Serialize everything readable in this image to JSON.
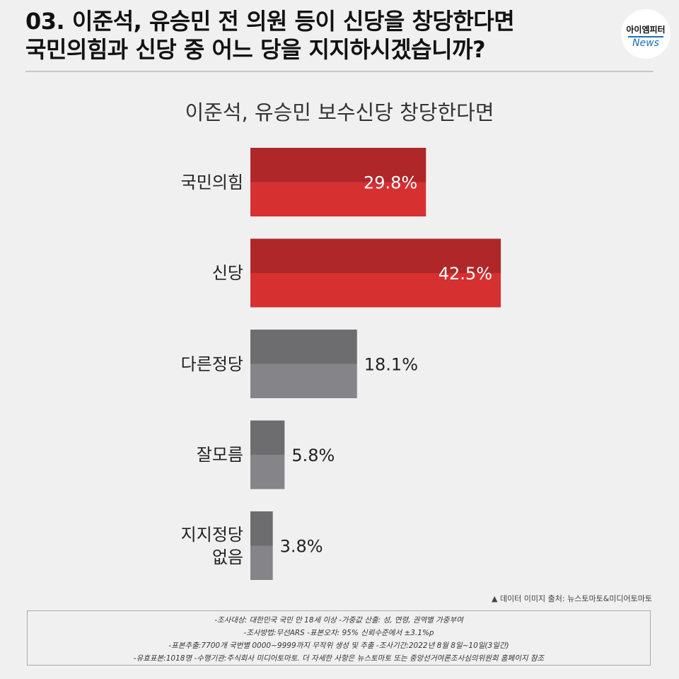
{
  "header": {
    "title_lines": [
      "03. 이준석, 유승민 전 의원 등이 신당을 창당한다면",
      "국민의힘과 신당 중 어느 당을 지지하시겠습니까?"
    ]
  },
  "logo": {
    "name": "아이엠피터",
    "subname": "News"
  },
  "chart_data": {
    "type": "hbar",
    "title": "이준석, 유승민 보수신당 창당한다면",
    "categories": [
      "국민의힘",
      "신당",
      "다른정당",
      "잘모름",
      "지지정당\n없음"
    ],
    "values": [
      29.8,
      42.5,
      18.1,
      5.8,
      3.8
    ],
    "value_labels": [
      "29.8%",
      "42.5%",
      "18.1%",
      "5.8%",
      "3.8%"
    ],
    "colors": [
      "#d63031",
      "#d63031",
      "#858589",
      "#858589",
      "#858589"
    ],
    "label_inside": [
      true,
      true,
      false,
      false,
      false
    ]
  },
  "source": "▲ 데이터 이미지 출처: 뉴스토마토&미디어토마토",
  "notes": [
    "-조사대상: 대한민국 국민 만 18세 이상  -가중값 산출: 성, 연령, 권역별 가중부여",
    "-조사방법:무선ARS -표본오차: 95% 신뢰수준에서 ±3.1%p",
    "-표본추출:7700개 국번별 0000~9999까지 무작위 생성 및 추출 -조사기간:2022년 8월 8일~10일(3일간)",
    "-유효표본:1018명 -수행기관:주식회사 미디어토마토. 더 자세한 사항은 뉴스토마토 또는 중앙선거여론조사심의위원회 홈페이지 참조"
  ]
}
